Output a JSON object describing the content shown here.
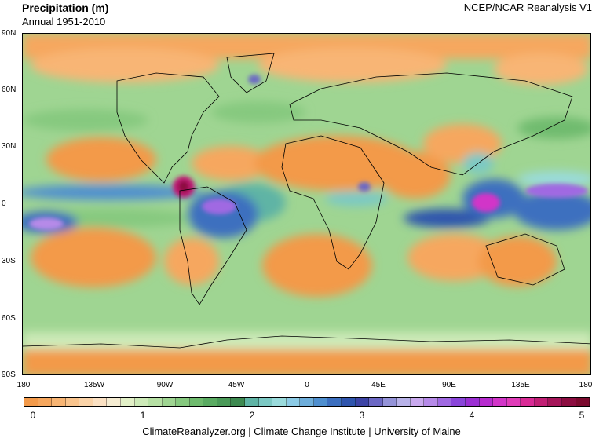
{
  "header": {
    "title": "Precipitation (m)",
    "subtitle": "Annual 1951-2010",
    "source": "NCEP/NCAR Reanalysis V1"
  },
  "axes": {
    "lat_labels": [
      "90N",
      "60N",
      "30N",
      "0",
      "30S",
      "60S",
      "90S"
    ],
    "lon_labels": [
      "180",
      "135W",
      "90W",
      "45W",
      "0",
      "45E",
      "90E",
      "135E",
      "180"
    ]
  },
  "colorbar": {
    "ticks": [
      "0",
      "1",
      "2",
      "3",
      "4",
      "5"
    ],
    "colors": [
      "#f39a4a",
      "#f6a75e",
      "#f8b574",
      "#f9c48d",
      "#fad3a8",
      "#fbe1c3",
      "#f5ecd2",
      "#e2f0c7",
      "#cdeab8",
      "#b6e0a4",
      "#9fd592",
      "#86c97f",
      "#6fbb6e",
      "#5aab62",
      "#4a9a58",
      "#3d8a50",
      "#5fb4a5",
      "#7cc9c4",
      "#9adbdc",
      "#8ccbe6",
      "#6eaedb",
      "#4f8fcf",
      "#3c6fbf",
      "#2f55ad",
      "#3d44a5",
      "#6c68c4",
      "#9493d8",
      "#b8b2e8",
      "#c9a9ee",
      "#b68ae8",
      "#a069e2",
      "#8a45da",
      "#9b2fd3",
      "#b72ccf",
      "#d235c8",
      "#e03cb8",
      "#d92a95",
      "#c11f74",
      "#a51559",
      "#8c0d40",
      "#7b0a2e"
    ]
  },
  "footer": {
    "credit": "ClimateReanalyzer.org | Climate Change Institute | University of Maine"
  }
}
